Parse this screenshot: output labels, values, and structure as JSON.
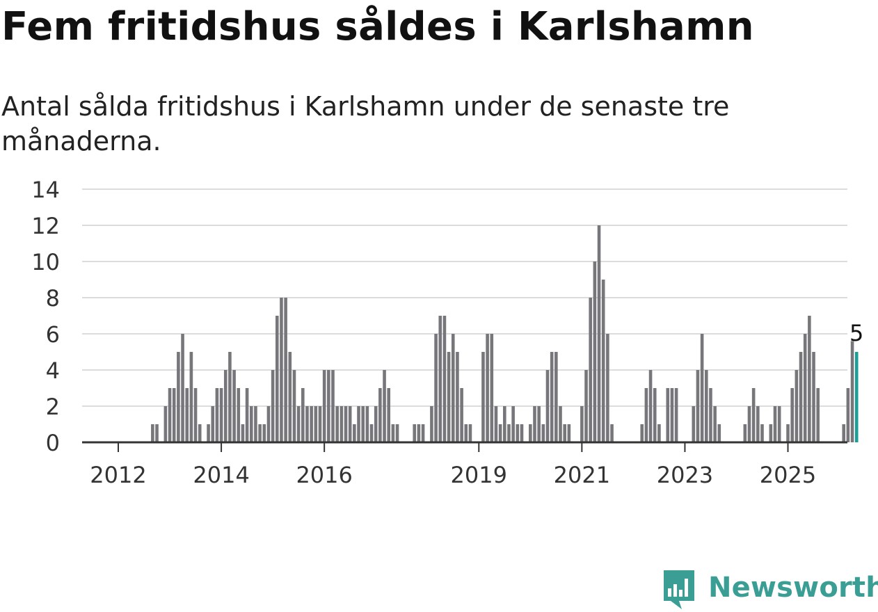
{
  "header": {
    "title": "Fem fritidshus såldes i Karlshamn",
    "subtitle": "Antal sålda fritidshus i Karlshamn under de senaste tre månaderna."
  },
  "brand": {
    "name": "Newsworthy",
    "color": "#3a9e95"
  },
  "chart_data": {
    "type": "bar",
    "title": "Fem fritidshus såldes i Karlshamn",
    "subtitle": "Antal sålda fritidshus i Karlshamn under de senaste tre månaderna.",
    "xlabel": "",
    "ylabel": "",
    "ylim": [
      0,
      14
    ],
    "y_ticks": [
      0,
      2,
      4,
      6,
      8,
      10,
      12,
      14
    ],
    "x_tick_labels": [
      "2012",
      "2014",
      "2016",
      "2019",
      "2021",
      "2023",
      "2025"
    ],
    "grid": true,
    "bar_color": "#77777b",
    "highlight_color": "#1a9e96",
    "highlight_label": "5",
    "series": [
      {
        "values": [
          0,
          0,
          0,
          0,
          0,
          0,
          0,
          0,
          1,
          1,
          0,
          2,
          3,
          3,
          5,
          6,
          3,
          5,
          3,
          1,
          0,
          1,
          2,
          3,
          3,
          4,
          5,
          4,
          3,
          1,
          3,
          2,
          2,
          1,
          1,
          2,
          4,
          7,
          8,
          8,
          5,
          4,
          2,
          3,
          2,
          2,
          2,
          2,
          4,
          4,
          4,
          2,
          2,
          2,
          2,
          1,
          2,
          2,
          2,
          1,
          2,
          3,
          4,
          3,
          1,
          1,
          0,
          0,
          0,
          1,
          1,
          1,
          0,
          2,
          6,
          7,
          7,
          5,
          6,
          5,
          3,
          1,
          1,
          0,
          0,
          5,
          6,
          6,
          2,
          1,
          2,
          1,
          2,
          1,
          1,
          0,
          1,
          2,
          2,
          1,
          4,
          5,
          5,
          2,
          1,
          1,
          0,
          0,
          2,
          4,
          8,
          10,
          12,
          9,
          6,
          1,
          0,
          0,
          0,
          0,
          0,
          0,
          1,
          3,
          4,
          3,
          1,
          0,
          3,
          3,
          3,
          0,
          0,
          0,
          2,
          4,
          6,
          4,
          3,
          2,
          1,
          0,
          0,
          0,
          0,
          0,
          1,
          2,
          3,
          2,
          1,
          0,
          1,
          2,
          2,
          0,
          1,
          3,
          4,
          5,
          6,
          7,
          5,
          3,
          0,
          0,
          0,
          0,
          0,
          1,
          3,
          5.6,
          5
        ]
      }
    ]
  }
}
